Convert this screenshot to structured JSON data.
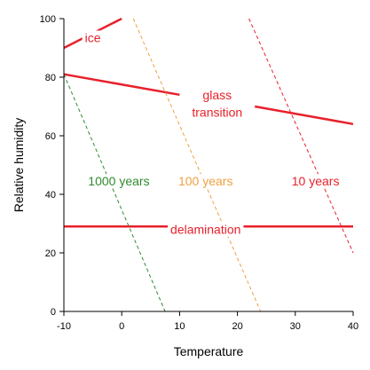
{
  "chart_data": {
    "type": "line",
    "xlabel": "Temperature",
    "ylabel": "Relative humidity",
    "xlim": [
      -10,
      40
    ],
    "ylim": [
      0,
      100
    ],
    "xticks": [
      -10,
      0,
      10,
      20,
      30,
      40
    ],
    "yticks": [
      0,
      20,
      40,
      60,
      80,
      100
    ],
    "grid": false,
    "series": [
      {
        "name": "ice",
        "color": "#e8202a",
        "style": "solid",
        "x": [
          -10,
          0
        ],
        "y": [
          90,
          100
        ]
      },
      {
        "name": "glass transition",
        "color": "#e8202a",
        "style": "solid",
        "x": [
          -10,
          10
        ],
        "y": [
          81,
          74
        ]
      },
      {
        "name": "glass transition",
        "color": "#e8202a",
        "style": "solid",
        "x": [
          23,
          40
        ],
        "y": [
          70,
          64
        ]
      },
      {
        "name": "delamination",
        "color": "#e8202a",
        "style": "solid",
        "x": [
          -10,
          40
        ],
        "y": [
          29,
          29
        ]
      },
      {
        "name": "1000 years",
        "color": "#2e8b2e",
        "style": "dashed",
        "x": [
          -10,
          7.5
        ],
        "y": [
          81,
          0
        ]
      },
      {
        "name": "100 years",
        "color": "#f0a040",
        "style": "dashed",
        "x": [
          2,
          24
        ],
        "y": [
          100,
          0
        ]
      },
      {
        "name": "10 years",
        "color": "#e8202a",
        "style": "dashed",
        "x": [
          22,
          40
        ],
        "y": [
          100,
          20
        ]
      }
    ],
    "annotations": [
      {
        "text": "ice",
        "color": "#e8202a",
        "x": -5,
        "y": 93.5
      },
      {
        "text": "glass",
        "color": "#e8202a",
        "x": 16.5,
        "y": 74
      },
      {
        "text": "transition",
        "color": "#e8202a",
        "x": 16.5,
        "y": 68
      },
      {
        "text": "1000 years",
        "color": "#2e8b2e",
        "x": -0.5,
        "y": 44.5
      },
      {
        "text": "100 years",
        "color": "#f0a040",
        "x": 14.5,
        "y": 44.5
      },
      {
        "text": "10 years",
        "color": "#e8202a",
        "x": 33.5,
        "y": 44.5
      },
      {
        "text": "delamination",
        "color": "#e8202a",
        "x": 14.5,
        "y": 28
      }
    ]
  }
}
